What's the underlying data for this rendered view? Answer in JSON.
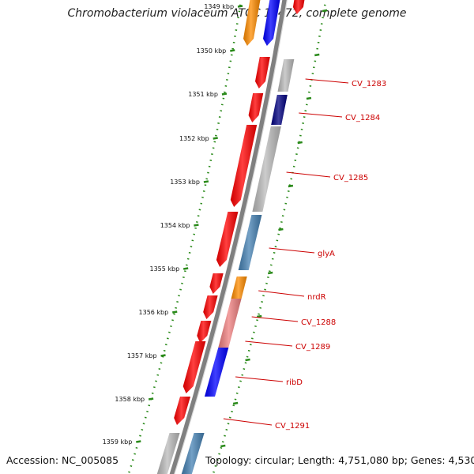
{
  "map": {
    "title": "Chromobacterium violaceum ATCC 12472, complete genome",
    "accession": "Accession: NC_005085",
    "topology": "Topology: circular; Length: 4,751,080 bp; Genes: 4,530",
    "colors": {
      "forward": "#ff0000",
      "backbone": "#808080",
      "label": "#cc0000",
      "ruler": "#2a8a1a",
      "gray": "#bbbbbb",
      "navy": "#000080",
      "orange": "#ff8c00",
      "steelblue": "#4682b4",
      "blue": "#0000ff",
      "pink": "#f08080"
    },
    "kbp_ticks": [
      "1349 kbp",
      "1350 kbp",
      "1351 kbp",
      "1352 kbp",
      "1353 kbp",
      "1354 kbp",
      "1355 kbp",
      "1356 kbp",
      "1357 kbp",
      "1358 kbp",
      "1359 kbp"
    ],
    "gene_labels": [
      "CV_1283",
      "CV_1284",
      "CV_1285",
      "glyA",
      "nrdR",
      "CV_1288",
      "CV_1289",
      "ribD",
      "CV_1291"
    ]
  }
}
